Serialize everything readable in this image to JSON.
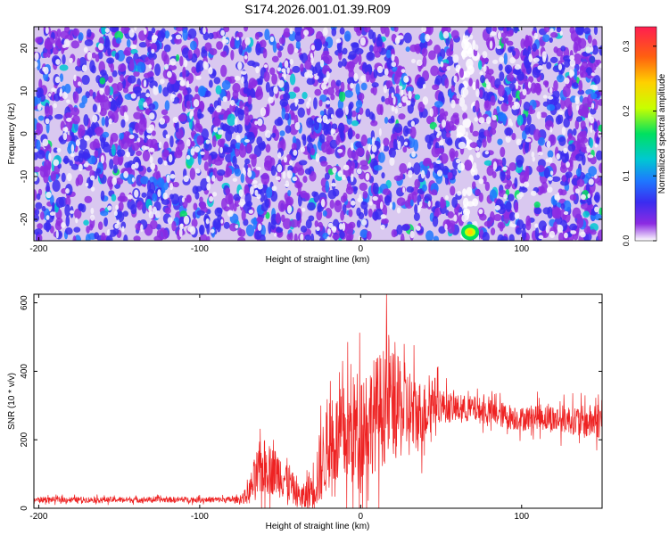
{
  "title": "S174.2026.001.01.39.R09",
  "colors": {
    "snr_line": "#ee2222",
    "frame": "#000000"
  },
  "chart_data": [
    {
      "type": "heatmap",
      "xlabel": "Height of straight line (km)",
      "ylabel": "Frequency (Hz)",
      "xlim": [
        -203,
        150
      ],
      "ylim": [
        -25,
        25
      ],
      "xticks": [
        -200,
        -100,
        0,
        100
      ],
      "xtick_labels": [
        "-200",
        "-100",
        "0",
        "100"
      ],
      "yticks": [
        -20,
        -10,
        0,
        10,
        20
      ],
      "ytick_labels": [
        "-20",
        "-10",
        "0",
        "10",
        "20"
      ],
      "colorbar": {
        "label": "Normalized spectral amplitude",
        "range": [
          0,
          0.33
        ],
        "ticks": [
          0,
          0.1,
          0.2,
          0.3
        ],
        "tick_labels": [
          "0.0",
          "0.1",
          "0.2",
          "0.3"
        ],
        "colormap": [
          "#ffffff",
          "#8c2be2",
          "#3a2cf0",
          "#1e78ff",
          "#00c8d2",
          "#00e060",
          "#c8ff00",
          "#ffd000",
          "#ff6010",
          "#ff1e50"
        ]
      },
      "background_level": 0.05,
      "hotspot": {
        "x": 68,
        "y": -23,
        "value": 0.2
      },
      "grid": false
    },
    {
      "type": "line",
      "xlabel": "Height of straight line (km)",
      "ylabel": "SNR (10 * v/v)",
      "xlim": [
        -203,
        150
      ],
      "ylim": [
        0,
        625
      ],
      "xticks": [
        -200,
        -100,
        0,
        100
      ],
      "xtick_labels": [
        "-200",
        "-100",
        "0",
        "100"
      ],
      "yticks": [
        0,
        200,
        400,
        600
      ],
      "ytick_labels": [
        "0",
        "200",
        "400",
        "600"
      ],
      "grid": false,
      "series": [
        {
          "x": [
            -203,
            -190,
            -170,
            -150,
            -130,
            -110,
            -90,
            -75,
            -70,
            -65,
            -60,
            -55,
            -50,
            -45,
            -40,
            -35,
            -30,
            -25,
            -20,
            -15,
            -10,
            -5,
            0,
            5,
            10,
            15,
            18,
            20,
            25,
            30,
            35,
            40,
            45,
            50,
            60,
            70,
            80,
            90,
            100,
            110,
            120,
            130,
            140,
            150
          ],
          "y": [
            25,
            25,
            25,
            25,
            25,
            25,
            25,
            25,
            40,
            90,
            120,
            110,
            100,
            80,
            40,
            30,
            60,
            120,
            180,
            200,
            210,
            220,
            250,
            260,
            280,
            300,
            330,
            300,
            290,
            280,
            270,
            280,
            320,
            300,
            290,
            290,
            280,
            270,
            260,
            270,
            260,
            260,
            250,
            260
          ],
          "spread": [
            12,
            12,
            12,
            12,
            12,
            12,
            12,
            14,
            40,
            110,
            120,
            100,
            100,
            90,
            50,
            60,
            110,
            160,
            180,
            200,
            220,
            240,
            250,
            240,
            240,
            250,
            290,
            220,
            210,
            200,
            160,
            130,
            110,
            70,
            60,
            55,
            55,
            55,
            50,
            55,
            60,
            60,
            70,
            80
          ]
        }
      ]
    }
  ]
}
